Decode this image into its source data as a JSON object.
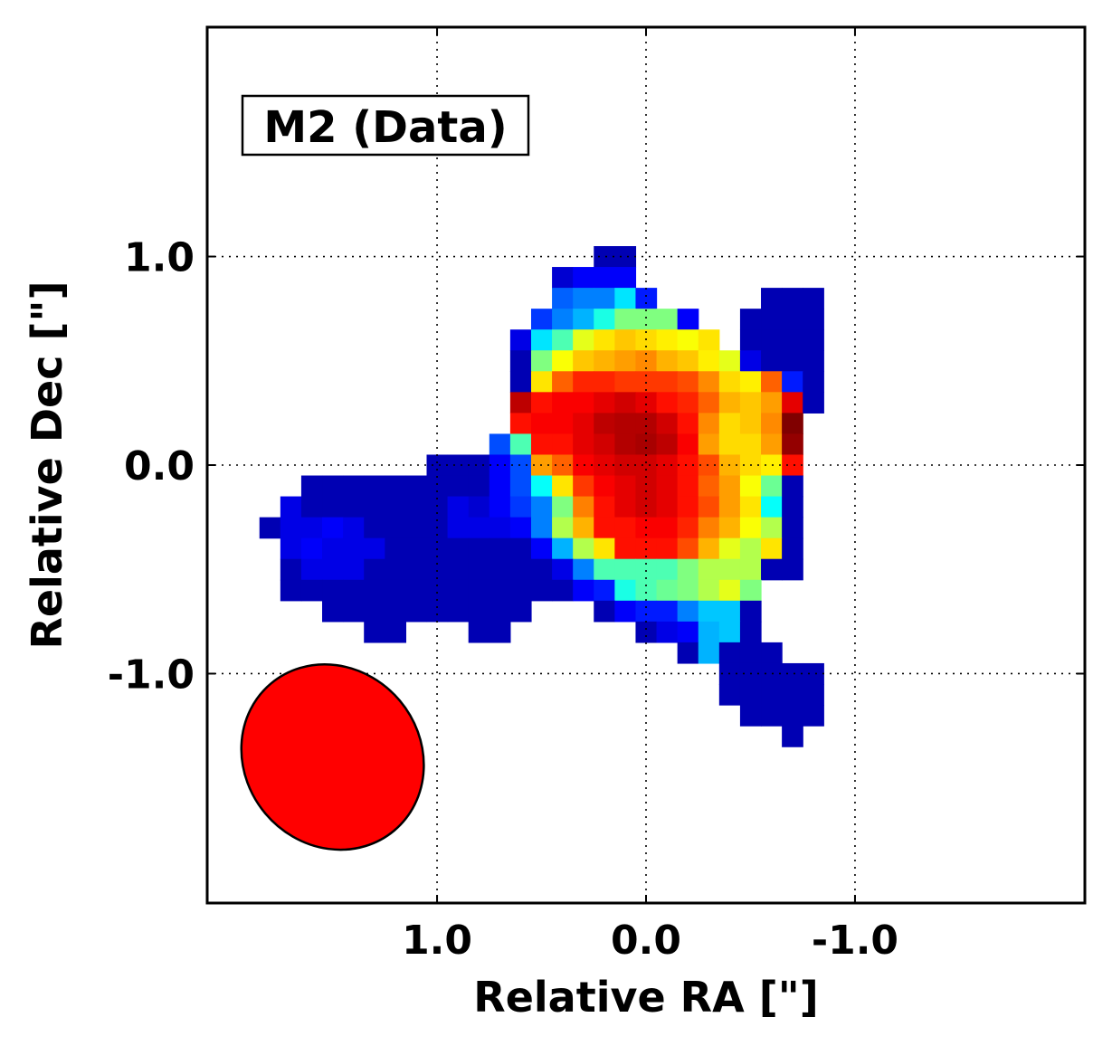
{
  "chart_data": {
    "type": "heatmap",
    "panel_label": "M2 (Data)",
    "xlabel": "Relative RA [\"]",
    "ylabel": "Relative Dec [\"]",
    "xlim": [
      2.1,
      -2.1
    ],
    "ylim": [
      -2.1,
      2.1
    ],
    "xticks": [
      1.0,
      0.0,
      -1.0
    ],
    "xtick_labels": [
      "1.0",
      "0.0",
      "-1.0"
    ],
    "yticks": [
      1.0,
      0.0,
      -1.0
    ],
    "ytick_labels": [
      "1.0",
      "0.0",
      "-1.0"
    ],
    "grid": true,
    "colormap": "jet",
    "pixel_size_arcsec": 0.1,
    "map_center_ra": 0.05,
    "map_center_dec": -0.05,
    "beam": {
      "ra_offset": 1.5,
      "dec_offset": -1.4,
      "major_arcsec": 0.92,
      "minor_arcsec": 0.84,
      "pa_deg": 40,
      "color": "#ff0000"
    },
    "colors": {
      "axes": "#000000",
      "grid": "#000000",
      "background": "#ffffff"
    },
    "row_start": 9,
    "rows": [
      [
        [
          18,
          "0.05"
        ],
        [
          19,
          "0.05"
        ]
      ],
      [
        [
          16,
          "0.08"
        ],
        [
          17,
          "0.12"
        ],
        [
          18,
          "0.12"
        ],
        [
          19,
          "0.12"
        ]
      ],
      [
        [
          16,
          "0.22"
        ],
        [
          17,
          "0.25"
        ],
        [
          18,
          "0.25"
        ],
        [
          19,
          "0.35"
        ],
        [
          20,
          "0.15"
        ],
        [
          26,
          "0.05"
        ],
        [
          27,
          "0.05"
        ],
        [
          28,
          "0.05"
        ]
      ],
      [
        [
          15,
          "0.18"
        ],
        [
          16,
          "0.25"
        ],
        [
          17,
          "0.3"
        ],
        [
          18,
          "0.4"
        ],
        [
          19,
          "0.5"
        ],
        [
          20,
          "0.5"
        ],
        [
          21,
          "0.5"
        ],
        [
          22,
          "0.12"
        ],
        [
          25,
          "0.05"
        ],
        [
          26,
          "0.05"
        ],
        [
          27,
          "0.05"
        ],
        [
          28,
          "0.05"
        ]
      ],
      [
        [
          14,
          "0.1"
        ],
        [
          15,
          "0.35"
        ],
        [
          16,
          "0.45"
        ],
        [
          17,
          "0.6"
        ],
        [
          18,
          "0.65"
        ],
        [
          19,
          "0.68"
        ],
        [
          20,
          "0.66"
        ],
        [
          21,
          "0.64"
        ],
        [
          22,
          "0.62"
        ],
        [
          23,
          "0.65"
        ],
        [
          25,
          "0.05"
        ],
        [
          26,
          "0.05"
        ],
        [
          27,
          "0.05"
        ],
        [
          28,
          "0.05"
        ]
      ],
      [
        [
          14,
          "0.05"
        ],
        [
          15,
          "0.5"
        ],
        [
          16,
          "0.62"
        ],
        [
          17,
          "0.68"
        ],
        [
          18,
          "0.7"
        ],
        [
          19,
          "0.72"
        ],
        [
          20,
          "0.74"
        ],
        [
          21,
          "0.7"
        ],
        [
          22,
          "0.68"
        ],
        [
          23,
          "0.64"
        ],
        [
          24,
          "0.6"
        ],
        [
          25,
          "0.1"
        ],
        [
          26,
          "0.05"
        ],
        [
          27,
          "0.05"
        ],
        [
          28,
          "0.05"
        ]
      ],
      [
        [
          14,
          "0.05"
        ],
        [
          15,
          "0.65"
        ],
        [
          16,
          "0.78"
        ],
        [
          17,
          "0.84"
        ],
        [
          18,
          "0.84"
        ],
        [
          19,
          "0.82"
        ],
        [
          20,
          "0.82"
        ],
        [
          21,
          "0.82"
        ],
        [
          22,
          "0.8"
        ],
        [
          23,
          "0.74"
        ],
        [
          24,
          "0.66"
        ],
        [
          25,
          "0.64"
        ],
        [
          26,
          "0.78"
        ],
        [
          27,
          "0.15"
        ],
        [
          28,
          "0.05"
        ]
      ],
      [
        [
          14,
          "0.94"
        ],
        [
          15,
          "0.86"
        ],
        [
          16,
          "0.88"
        ],
        [
          17,
          "0.88"
        ],
        [
          18,
          "0.9"
        ],
        [
          19,
          "0.92"
        ],
        [
          20,
          "0.9"
        ],
        [
          21,
          "0.86"
        ],
        [
          22,
          "0.84"
        ],
        [
          23,
          "0.78"
        ],
        [
          24,
          "0.7"
        ],
        [
          25,
          "0.68"
        ],
        [
          26,
          "0.72"
        ],
        [
          27,
          "0.9"
        ],
        [
          28,
          "0.05"
        ]
      ],
      [
        [
          14,
          "0.86"
        ],
        [
          15,
          "0.88"
        ],
        [
          16,
          "0.88"
        ],
        [
          17,
          "0.9"
        ],
        [
          18,
          "0.94"
        ],
        [
          19,
          "0.95"
        ],
        [
          20,
          "0.95"
        ],
        [
          21,
          "0.92"
        ],
        [
          22,
          "0.86"
        ],
        [
          23,
          "0.74"
        ],
        [
          24,
          "0.66"
        ],
        [
          25,
          "0.68"
        ],
        [
          26,
          "0.74"
        ],
        [
          27,
          "1.0"
        ]
      ],
      [
        [
          13,
          "0.2"
        ],
        [
          14,
          "0.45"
        ],
        [
          15,
          "0.86"
        ],
        [
          16,
          "0.86"
        ],
        [
          17,
          "0.9"
        ],
        [
          18,
          "0.92"
        ],
        [
          19,
          "0.95"
        ],
        [
          20,
          "0.96"
        ],
        [
          21,
          "0.94"
        ],
        [
          22,
          "0.88"
        ],
        [
          23,
          "0.72"
        ],
        [
          24,
          "0.66"
        ],
        [
          25,
          "0.66"
        ],
        [
          26,
          "0.72"
        ],
        [
          27,
          "0.98"
        ]
      ],
      [
        [
          10,
          "0.05"
        ],
        [
          11,
          "0.05"
        ],
        [
          12,
          "0.05"
        ],
        [
          13,
          "0.12"
        ],
        [
          14,
          "0.2"
        ],
        [
          15,
          "0.72"
        ],
        [
          16,
          "0.78"
        ],
        [
          17,
          "0.88"
        ],
        [
          18,
          "0.9"
        ],
        [
          19,
          "0.92"
        ],
        [
          20,
          "0.92"
        ],
        [
          21,
          "0.9"
        ],
        [
          22,
          "0.86"
        ],
        [
          23,
          "0.8"
        ],
        [
          24,
          "0.7"
        ],
        [
          25,
          "0.66"
        ],
        [
          26,
          "0.64"
        ],
        [
          27,
          "0.86"
        ]
      ],
      [
        [
          4,
          "0.05"
        ],
        [
          5,
          "0.05"
        ],
        [
          6,
          "0.05"
        ],
        [
          7,
          "0.05"
        ],
        [
          8,
          "0.05"
        ],
        [
          9,
          "0.05"
        ],
        [
          10,
          "0.05"
        ],
        [
          11,
          "0.05"
        ],
        [
          12,
          "0.05"
        ],
        [
          13,
          "0.12"
        ],
        [
          14,
          "0.2"
        ],
        [
          15,
          "0.38"
        ],
        [
          16,
          "0.65"
        ],
        [
          17,
          "0.82"
        ],
        [
          18,
          "0.88"
        ],
        [
          19,
          "0.9"
        ],
        [
          20,
          "0.92"
        ],
        [
          21,
          "0.9"
        ],
        [
          22,
          "0.86"
        ],
        [
          23,
          "0.78"
        ],
        [
          24,
          "0.72"
        ],
        [
          25,
          "0.62"
        ],
        [
          26,
          "0.48"
        ],
        [
          27,
          "0.05"
        ]
      ],
      [
        [
          3,
          "0.1"
        ],
        [
          4,
          "0.05"
        ],
        [
          5,
          "0.05"
        ],
        [
          6,
          "0.05"
        ],
        [
          7,
          "0.05"
        ],
        [
          8,
          "0.05"
        ],
        [
          9,
          "0.05"
        ],
        [
          10,
          "0.05"
        ],
        [
          11,
          "0.1"
        ],
        [
          12,
          "0.08"
        ],
        [
          13,
          "0.12"
        ],
        [
          14,
          "0.18"
        ],
        [
          15,
          "0.25"
        ],
        [
          16,
          "0.5"
        ],
        [
          17,
          "0.75"
        ],
        [
          18,
          "0.86"
        ],
        [
          19,
          "0.9"
        ],
        [
          20,
          "0.92"
        ],
        [
          21,
          "0.9"
        ],
        [
          22,
          "0.86"
        ],
        [
          23,
          "0.8"
        ],
        [
          24,
          "0.72"
        ],
        [
          25,
          "0.65"
        ],
        [
          26,
          "0.38"
        ],
        [
          27,
          "0.05"
        ]
      ],
      [
        [
          2,
          "0.05"
        ],
        [
          3,
          "0.1"
        ],
        [
          4,
          "0.1"
        ],
        [
          5,
          "0.12"
        ],
        [
          6,
          "0.1"
        ],
        [
          7,
          "0.05"
        ],
        [
          8,
          "0.05"
        ],
        [
          9,
          "0.05"
        ],
        [
          10,
          "0.05"
        ],
        [
          11,
          "0.1"
        ],
        [
          12,
          "0.1"
        ],
        [
          13,
          "0.1"
        ],
        [
          14,
          "0.12"
        ],
        [
          15,
          "0.25"
        ],
        [
          16,
          "0.55"
        ],
        [
          17,
          "0.7"
        ],
        [
          18,
          "0.86"
        ],
        [
          19,
          "0.86"
        ],
        [
          20,
          "0.88"
        ],
        [
          21,
          "0.88"
        ],
        [
          22,
          "0.84"
        ],
        [
          23,
          "0.75"
        ],
        [
          24,
          "0.7"
        ],
        [
          25,
          "0.62"
        ],
        [
          26,
          "0.55"
        ],
        [
          27,
          "0.05"
        ]
      ],
      [
        [
          3,
          "0.1"
        ],
        [
          4,
          "0.12"
        ],
        [
          5,
          "0.1"
        ],
        [
          6,
          "0.1"
        ],
        [
          7,
          "0.1"
        ],
        [
          8,
          "0.05"
        ],
        [
          9,
          "0.05"
        ],
        [
          10,
          "0.05"
        ],
        [
          11,
          "0.05"
        ],
        [
          12,
          "0.05"
        ],
        [
          13,
          "0.05"
        ],
        [
          14,
          "0.05"
        ],
        [
          15,
          "0.12"
        ],
        [
          16,
          "0.3"
        ],
        [
          17,
          "0.55"
        ],
        [
          18,
          "0.65"
        ],
        [
          19,
          "0.86"
        ],
        [
          20,
          "0.86"
        ],
        [
          21,
          "0.86"
        ],
        [
          22,
          "0.8"
        ],
        [
          23,
          "0.7"
        ],
        [
          24,
          "0.6"
        ],
        [
          25,
          "0.55"
        ],
        [
          26,
          "0.65"
        ],
        [
          27,
          "0.05"
        ]
      ],
      [
        [
          3,
          "0.05"
        ],
        [
          4,
          "0.1"
        ],
        [
          5,
          "0.1"
        ],
        [
          6,
          "0.1"
        ],
        [
          7,
          "0.05"
        ],
        [
          8,
          "0.05"
        ],
        [
          9,
          "0.05"
        ],
        [
          10,
          "0.05"
        ],
        [
          11,
          "0.05"
        ],
        [
          12,
          "0.05"
        ],
        [
          13,
          "0.05"
        ],
        [
          14,
          "0.05"
        ],
        [
          15,
          "0.05"
        ],
        [
          16,
          "0.1"
        ],
        [
          17,
          "0.25"
        ],
        [
          18,
          "0.45"
        ],
        [
          19,
          "0.45"
        ],
        [
          20,
          "0.45"
        ],
        [
          21,
          "0.45"
        ],
        [
          22,
          "0.5"
        ],
        [
          23,
          "0.55"
        ],
        [
          24,
          "0.55"
        ],
        [
          25,
          "0.55"
        ],
        [
          26,
          "0.05"
        ],
        [
          27,
          "0.05"
        ]
      ],
      [
        [
          3,
          "0.05"
        ],
        [
          4,
          "0.05"
        ],
        [
          5,
          "0.05"
        ],
        [
          6,
          "0.05"
        ],
        [
          7,
          "0.05"
        ],
        [
          8,
          "0.05"
        ],
        [
          9,
          "0.05"
        ],
        [
          10,
          "0.05"
        ],
        [
          11,
          "0.05"
        ],
        [
          12,
          "0.05"
        ],
        [
          13,
          "0.05"
        ],
        [
          14,
          "0.05"
        ],
        [
          15,
          "0.05"
        ],
        [
          16,
          "0.05"
        ],
        [
          17,
          "0.12"
        ],
        [
          18,
          "0.15"
        ],
        [
          19,
          "0.4"
        ],
        [
          20,
          "0.45"
        ],
        [
          21,
          "0.48"
        ],
        [
          22,
          "0.5"
        ],
        [
          23,
          "0.55"
        ],
        [
          24,
          "0.6"
        ],
        [
          25,
          "0.5"
        ]
      ],
      [
        [
          5,
          "0.05"
        ],
        [
          6,
          "0.05"
        ],
        [
          7,
          "0.05"
        ],
        [
          8,
          "0.05"
        ],
        [
          9,
          "0.05"
        ],
        [
          10,
          "0.05"
        ],
        [
          11,
          "0.05"
        ],
        [
          12,
          "0.05"
        ],
        [
          13,
          "0.05"
        ],
        [
          14,
          "0.05"
        ],
        [
          18,
          "0.05"
        ],
        [
          19,
          "0.12"
        ],
        [
          20,
          "0.15"
        ],
        [
          21,
          "0.15"
        ],
        [
          22,
          "0.25"
        ],
        [
          23,
          "0.32"
        ],
        [
          24,
          "0.32"
        ],
        [
          25,
          "0.05"
        ]
      ],
      [
        [
          7,
          "0.05"
        ],
        [
          8,
          "0.05"
        ],
        [
          12,
          "0.05"
        ],
        [
          13,
          "0.05"
        ],
        [
          20,
          "0.05"
        ],
        [
          21,
          "0.1"
        ],
        [
          22,
          "0.12"
        ],
        [
          23,
          "0.3"
        ],
        [
          24,
          "0.32"
        ],
        [
          25,
          "0.05"
        ]
      ],
      [
        [
          22,
          "0.05"
        ],
        [
          23,
          "0.3"
        ],
        [
          24,
          "0.05"
        ],
        [
          25,
          "0.05"
        ],
        [
          26,
          "0.05"
        ]
      ],
      [
        [
          24,
          "0.05"
        ],
        [
          25,
          "0.05"
        ],
        [
          26,
          "0.05"
        ],
        [
          27,
          "0.05"
        ],
        [
          28,
          "0.05"
        ]
      ],
      [
        [
          24,
          "0.05"
        ],
        [
          25,
          "0.05"
        ],
        [
          26,
          "0.05"
        ],
        [
          27,
          "0.05"
        ],
        [
          28,
          "0.05"
        ]
      ],
      [
        [
          25,
          "0.05"
        ],
        [
          26,
          "0.05"
        ],
        [
          27,
          "0.05"
        ],
        [
          28,
          "0.05"
        ]
      ],
      [
        [
          27,
          "0.05"
        ]
      ]
    ]
  }
}
